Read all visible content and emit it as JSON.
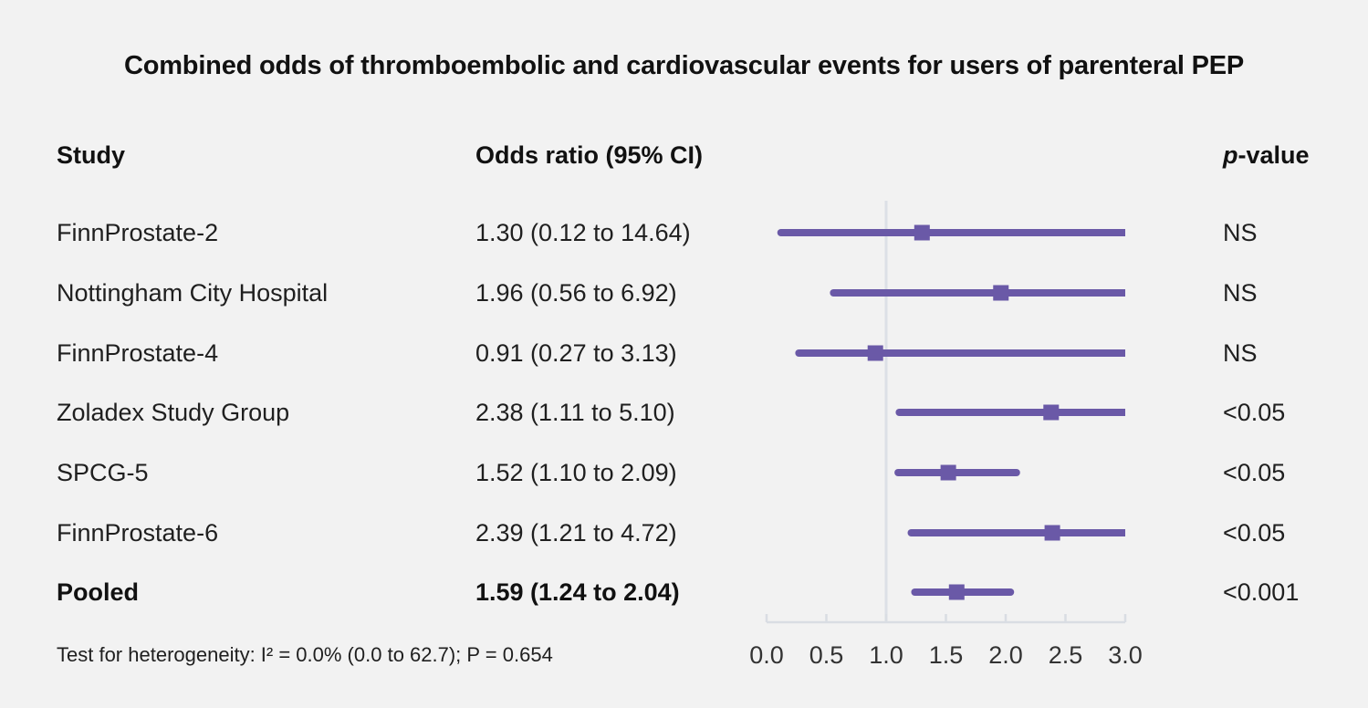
{
  "title": "Combined odds of thromboembolic and cardiovascular events for users of parenteral PEP",
  "columns": {
    "study": "Study",
    "odds_ratio": "Odds ratio (95% CI)",
    "p_value_italic": "p",
    "p_value_rest": "-value"
  },
  "rows": [
    {
      "study": "FinnProstate-2",
      "or_text": "1.30 (0.12 to 14.64)",
      "p": "NS"
    },
    {
      "study": "Nottingham City Hospital",
      "or_text": "1.96 (0.56 to 6.92)",
      "p": "NS"
    },
    {
      "study": "FinnProstate-4",
      "or_text": "0.91 (0.27 to 3.13)",
      "p": "NS"
    },
    {
      "study": "Zoladex Study Group",
      "or_text": "2.38 (1.11 to 5.10)",
      "p": "<0.05"
    },
    {
      "study": "SPCG-5",
      "or_text": "1.52 (1.10 to 2.09)",
      "p": "<0.05"
    },
    {
      "study": "FinnProstate-6",
      "or_text": "2.39 (1.21 to 4.72)",
      "p": "<0.05"
    },
    {
      "study": "Pooled",
      "or_text": "1.59 (1.24 to 2.04)",
      "p": "<0.001"
    }
  ],
  "footnote": "Test for heterogeneity: I² = 0.0% (0.0 to 62.7); P = 0.654",
  "chart_data": {
    "type": "forest",
    "title": "Combined odds of thromboembolic and cardiovascular events for users of parenteral PEP",
    "series": [
      {
        "name": "FinnProstate-2",
        "or": 1.3,
        "ci_low": 0.12,
        "ci_high": 14.64,
        "p": "NS"
      },
      {
        "name": "Nottingham City Hospital",
        "or": 1.96,
        "ci_low": 0.56,
        "ci_high": 6.92,
        "p": "NS"
      },
      {
        "name": "FinnProstate-4",
        "or": 0.91,
        "ci_low": 0.27,
        "ci_high": 3.13,
        "p": "NS"
      },
      {
        "name": "Zoladex Study Group",
        "or": 2.38,
        "ci_low": 1.11,
        "ci_high": 5.1,
        "p": "<0.05"
      },
      {
        "name": "SPCG-5",
        "or": 1.52,
        "ci_low": 1.1,
        "ci_high": 2.09,
        "p": "<0.05"
      },
      {
        "name": "FinnProstate-6",
        "or": 2.39,
        "ci_low": 1.21,
        "ci_high": 4.72,
        "p": "<0.05"
      },
      {
        "name": "Pooled",
        "or": 1.59,
        "ci_low": 1.24,
        "ci_high": 2.04,
        "p": "<0.001",
        "pooled": true
      }
    ],
    "xlim": [
      0.0,
      3.0
    ],
    "clip_max": 3.0,
    "reference_line": 1.0,
    "xticks": [
      0.0,
      0.5,
      1.0,
      1.5,
      2.0,
      2.5,
      3.0
    ],
    "xtick_labels": [
      "0.0",
      "0.5",
      "1.0",
      "1.5",
      "2.0",
      "2.5",
      "3.0"
    ],
    "grid": false,
    "marker_color": "#6a59a7",
    "axis_color": "#d9dde3",
    "reference_line_color": "#dce0e6",
    "tick_label_color": "#333333"
  }
}
